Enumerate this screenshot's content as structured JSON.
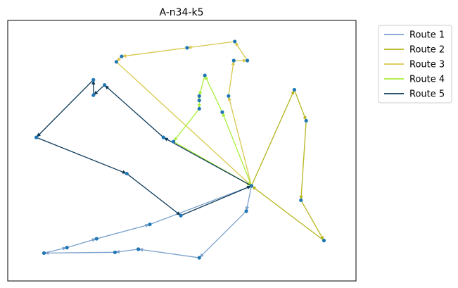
{
  "chart_data": {
    "type": "line",
    "title": "A-n34-k5",
    "xlabel": "",
    "ylabel": "",
    "xlim": [
      0,
      100
    ],
    "ylim": [
      0,
      100
    ],
    "axes_visible": false,
    "grid": false,
    "legend": {
      "placement": "outside-top-right"
    },
    "depot": {
      "x": 70.0,
      "y": 36.5
    },
    "series": [
      {
        "name": "Route 1",
        "color": "#7aa0cc",
        "points": [
          {
            "x": 70.0,
            "y": 36.5
          },
          {
            "x": 68.5,
            "y": 26.8
          },
          {
            "x": 55.0,
            "y": 8.9
          },
          {
            "x": 37.5,
            "y": 12.2
          },
          {
            "x": 30.8,
            "y": 11.0
          },
          {
            "x": 10.4,
            "y": 10.7
          },
          {
            "x": 17.0,
            "y": 12.8
          },
          {
            "x": 25.5,
            "y": 16.2
          },
          {
            "x": 40.8,
            "y": 21.7
          },
          {
            "x": 70.0,
            "y": 36.5
          }
        ]
      },
      {
        "name": "Route 2",
        "color": "#b5b51e",
        "points": [
          {
            "x": 70.0,
            "y": 36.5
          },
          {
            "x": 82.3,
            "y": 73.4
          },
          {
            "x": 85.7,
            "y": 61.5
          },
          {
            "x": 84.2,
            "y": 31.0
          },
          {
            "x": 90.8,
            "y": 15.5
          },
          {
            "x": 70.0,
            "y": 36.5
          }
        ]
      },
      {
        "name": "Route 3",
        "color": "#d8c84c",
        "points": [
          {
            "x": 70.0,
            "y": 36.5
          },
          {
            "x": 63.4,
            "y": 71.0
          },
          {
            "x": 64.9,
            "y": 84.6
          },
          {
            "x": 68.8,
            "y": 84.6
          },
          {
            "x": 65.2,
            "y": 91.9
          },
          {
            "x": 51.5,
            "y": 89.5
          },
          {
            "x": 32.7,
            "y": 86.2
          },
          {
            "x": 31.2,
            "y": 84.1
          },
          {
            "x": 70.0,
            "y": 36.5
          }
        ]
      },
      {
        "name": "Route 4",
        "color": "#a9ee3a",
        "points": [
          {
            "x": 70.0,
            "y": 36.5
          },
          {
            "x": 61.6,
            "y": 64.8
          },
          {
            "x": 56.6,
            "y": 78.9
          },
          {
            "x": 55.0,
            "y": 71.0
          },
          {
            "x": 55.0,
            "y": 69.3
          },
          {
            "x": 55.0,
            "y": 66.1
          },
          {
            "x": 47.6,
            "y": 53.5
          },
          {
            "x": 70.0,
            "y": 36.5
          }
        ]
      },
      {
        "name": "Route 5",
        "color": "#0e3a5a",
        "points": [
          {
            "x": 70.0,
            "y": 36.5
          },
          {
            "x": 44.7,
            "y": 55.1
          },
          {
            "x": 27.8,
            "y": 75.2
          },
          {
            "x": 24.6,
            "y": 71.3
          },
          {
            "x": 24.6,
            "y": 77.2
          },
          {
            "x": 8.2,
            "y": 55.1
          },
          {
            "x": 34.2,
            "y": 41.2
          },
          {
            "x": 49.7,
            "y": 25.1
          },
          {
            "x": 70.0,
            "y": 36.5
          }
        ]
      }
    ]
  }
}
